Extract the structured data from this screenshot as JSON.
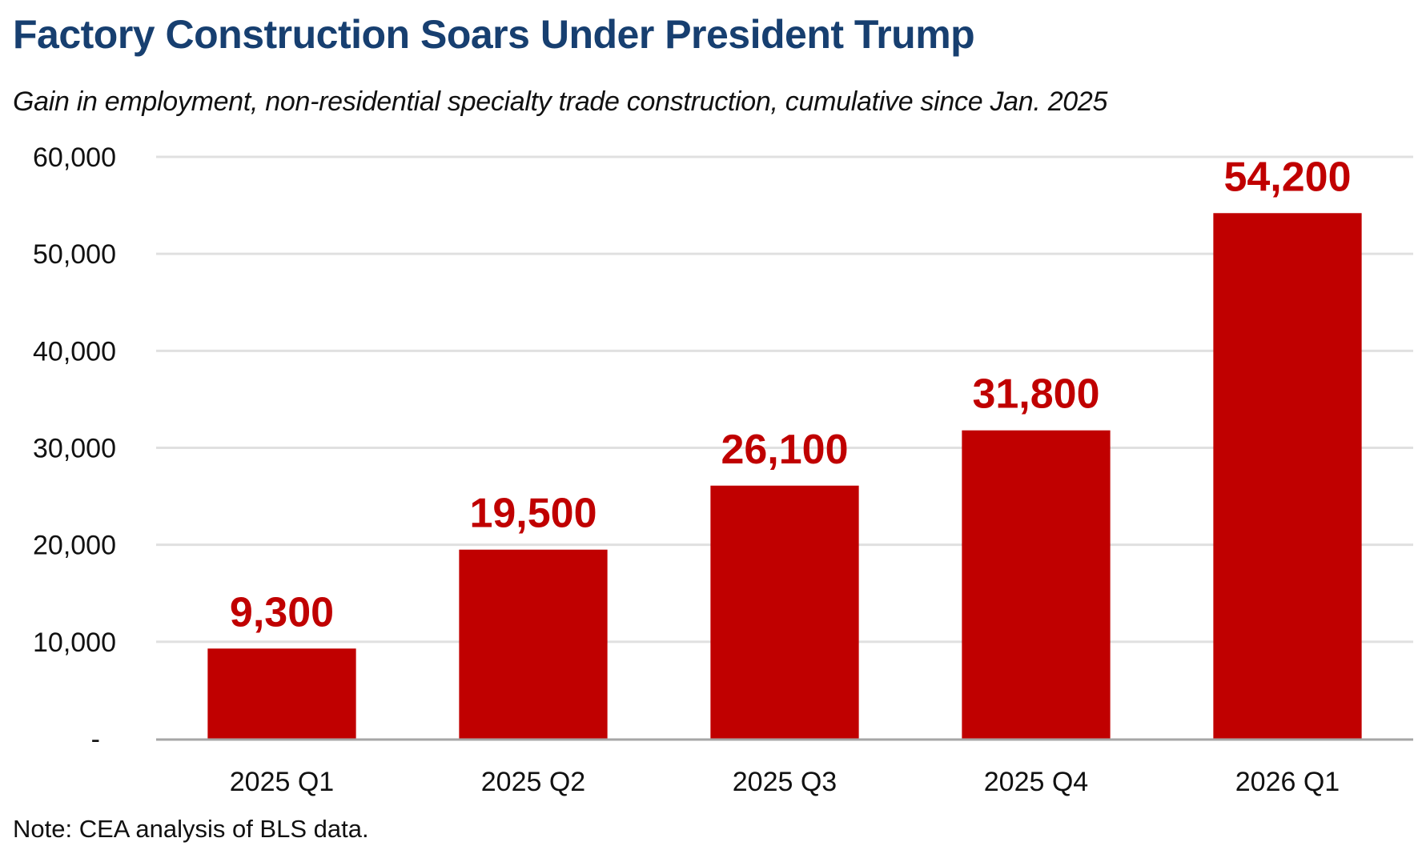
{
  "title": "Factory Construction Soars Under President Trump",
  "subtitle": "Gain in employment, non-residential specialty trade construction, cumulative since Jan. 2025",
  "note": "Note: CEA analysis of BLS data.",
  "colors": {
    "title": "#173f70",
    "bar": "#c00000",
    "data_label": "#c00000",
    "gridline": "#e0e0e0",
    "baseline": "#a6a6a6",
    "text": "#111111"
  },
  "chart_data": {
    "type": "bar",
    "title": "Factory Construction Soars Under President Trump",
    "subtitle": "Gain in employment, non-residential specialty trade construction, cumulative since Jan. 2025",
    "xlabel": "",
    "ylabel": "",
    "categories": [
      "2025 Q1",
      "2025 Q2",
      "2025 Q3",
      "2025 Q4",
      "2026 Q1"
    ],
    "values": [
      9300,
      19500,
      26100,
      31800,
      54200
    ],
    "data_labels": [
      "9,300",
      "19,500",
      "26,100",
      "31,800",
      "54,200"
    ],
    "ylim": [
      0,
      60000
    ],
    "yticks": [
      0,
      10000,
      20000,
      30000,
      40000,
      50000,
      60000
    ],
    "ytick_labels": [
      "-",
      "10,000",
      "20,000",
      "30,000",
      "40,000",
      "50,000",
      "60,000"
    ],
    "grid": true,
    "legend": "none",
    "annotation": "Note: CEA analysis of BLS data."
  }
}
